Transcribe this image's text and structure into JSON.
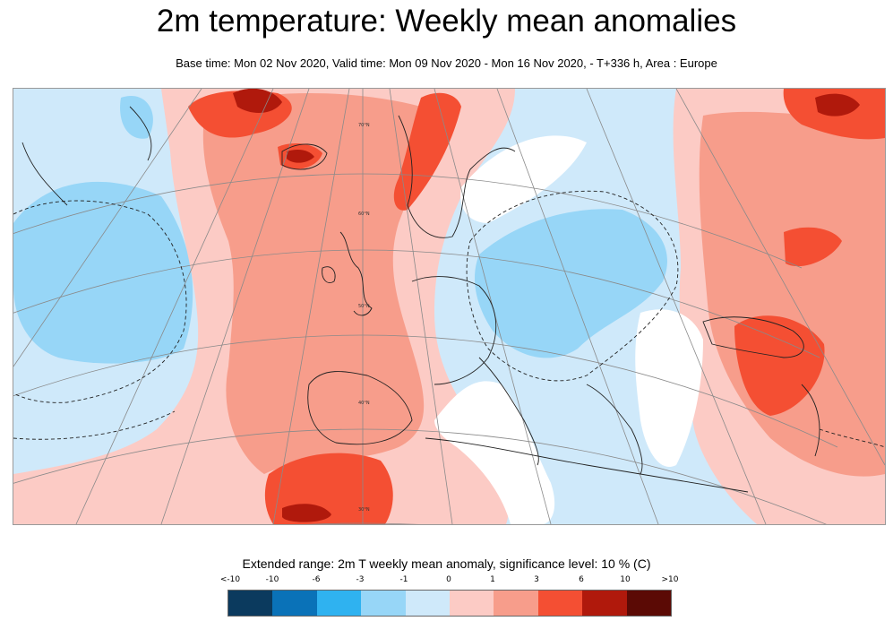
{
  "title": "2m temperature: Weekly mean anomalies",
  "subtitle": "Base time: Mon 02 Nov 2020, Valid time: Mon 09 Nov 2020 - Mon 16 Nov 2020, - T+336 h, Area : Europe",
  "map": {
    "area": "Europe",
    "latitude_labels": [
      "70°N",
      "60°N",
      "50°N",
      "40°N",
      "30°N"
    ]
  },
  "legend": {
    "title": "Extended range: 2m T weekly mean anomaly, significance level: 10 % (C)",
    "ticks": [
      "<-10",
      "-10",
      "-6",
      "-3",
      "-1",
      "0",
      "1",
      "3",
      "6",
      "10",
      ">10"
    ],
    "colors": [
      "#0b3a5e",
      "#0a72b8",
      "#2fb2f0",
      "#97d6f7",
      "#cfe9fa",
      "#ffffff",
      "#fccbc5",
      "#f79d8b",
      "#f44f33",
      "#b0190c",
      "#5b0a05"
    ]
  }
}
